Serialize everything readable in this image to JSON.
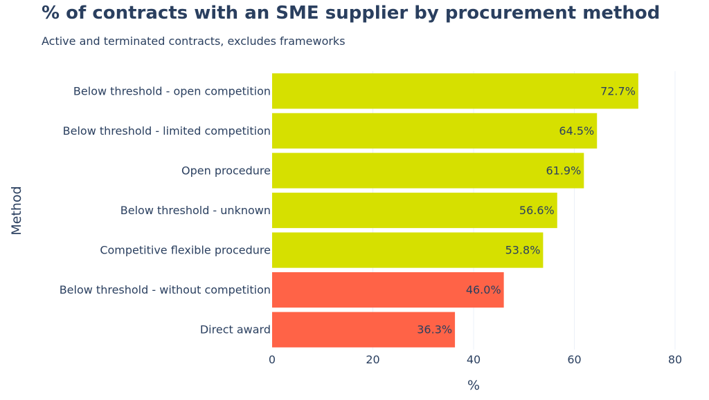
{
  "chart_data": {
    "type": "bar",
    "orientation": "horizontal",
    "title": "% of contracts with an SME supplier by procurement method",
    "subtitle": "Active and terminated contracts, excludes frameworks",
    "xlabel": "%",
    "ylabel": "Method",
    "xlim": [
      0,
      80
    ],
    "xticks": [
      0,
      20,
      40,
      60,
      80
    ],
    "grid": true,
    "categories": [
      "Below threshold - open competition",
      "Below threshold - limited competition",
      "Open procedure",
      "Below threshold - unknown",
      "Competitive flexible procedure",
      "Below threshold - without competition",
      "Direct award"
    ],
    "values": [
      72.7,
      64.5,
      61.9,
      56.6,
      53.8,
      46.0,
      36.3
    ],
    "value_labels": [
      "72.7%",
      "64.5%",
      "61.9%",
      "56.6%",
      "53.8%",
      "46.0%",
      "36.3%"
    ],
    "bar_colors": [
      "#d6e000",
      "#d6e000",
      "#d6e000",
      "#d6e000",
      "#d6e000",
      "#ff6347",
      "#ff6347"
    ]
  }
}
